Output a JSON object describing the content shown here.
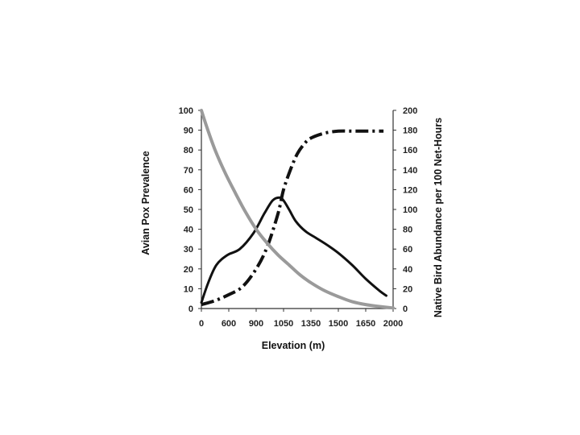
{
  "chart_data": {
    "type": "line",
    "title": "",
    "xlabel": "Elevation (m)",
    "ylabel_left": "Avian Pox Prevalence",
    "ylabel_right": "Native Bird Abundance per 100 Net-Hours",
    "x_tick_labels": [
      "0",
      "600",
      "900",
      "1050",
      "1350",
      "1500",
      "1650",
      "2000"
    ],
    "y_left_ticks": [
      0,
      10,
      20,
      30,
      40,
      50,
      60,
      70,
      80,
      90,
      100
    ],
    "y_right_ticks": [
      0,
      20,
      40,
      60,
      80,
      100,
      120,
      140,
      160,
      180,
      200
    ],
    "ylim_left": [
      0,
      100
    ],
    "ylim_right": [
      0,
      200
    ],
    "grid": false,
    "legend": "none",
    "series": [
      {
        "axis": "left",
        "style": "solid",
        "color": "#111111",
        "points": [
          [
            0,
            3
          ],
          [
            0.25,
            13
          ],
          [
            0.55,
            22
          ],
          [
            0.95,
            27
          ],
          [
            1.4,
            30
          ],
          [
            1.9,
            38
          ],
          [
            2.3,
            48
          ],
          [
            2.6,
            54.5
          ],
          [
            2.85,
            56
          ],
          [
            3.0,
            54.5
          ],
          [
            3.2,
            50
          ],
          [
            3.45,
            44
          ],
          [
            3.8,
            39
          ],
          [
            4.2,
            35.5
          ],
          [
            4.6,
            32
          ],
          [
            5.0,
            28
          ],
          [
            5.5,
            22
          ],
          [
            6.0,
            15
          ],
          [
            6.5,
            9
          ],
          [
            6.75,
            6.5
          ]
        ]
      },
      {
        "axis": "left",
        "style": "dashdot",
        "color": "#111111",
        "points": [
          [
            0,
            2
          ],
          [
            0.5,
            4
          ],
          [
            1.0,
            7
          ],
          [
            1.5,
            11
          ],
          [
            2.0,
            20
          ],
          [
            2.4,
            31
          ],
          [
            2.8,
            48
          ],
          [
            3.0,
            60
          ],
          [
            3.25,
            70
          ],
          [
            3.5,
            78
          ],
          [
            3.75,
            83
          ],
          [
            4.0,
            86
          ],
          [
            4.5,
            88.5
          ],
          [
            5.0,
            89.5
          ],
          [
            5.5,
            89.5
          ],
          [
            6.0,
            89.5
          ],
          [
            6.65,
            89.5
          ]
        ]
      },
      {
        "axis": "left",
        "style": "solid",
        "color": "#9a9a9a",
        "points": [
          [
            0,
            100
          ],
          [
            0.2,
            91.5
          ],
          [
            0.5,
            80
          ],
          [
            0.85,
            69
          ],
          [
            1.25,
            58
          ],
          [
            1.6,
            49
          ],
          [
            2.0,
            40
          ],
          [
            2.4,
            33
          ],
          [
            2.8,
            27
          ],
          [
            3.2,
            22
          ],
          [
            3.6,
            17
          ],
          [
            4.0,
            13
          ],
          [
            4.5,
            9
          ],
          [
            5.0,
            6
          ],
          [
            5.5,
            3.5
          ],
          [
            6.0,
            2
          ],
          [
            6.5,
            1
          ],
          [
            7.0,
            0.3
          ]
        ]
      }
    ]
  }
}
